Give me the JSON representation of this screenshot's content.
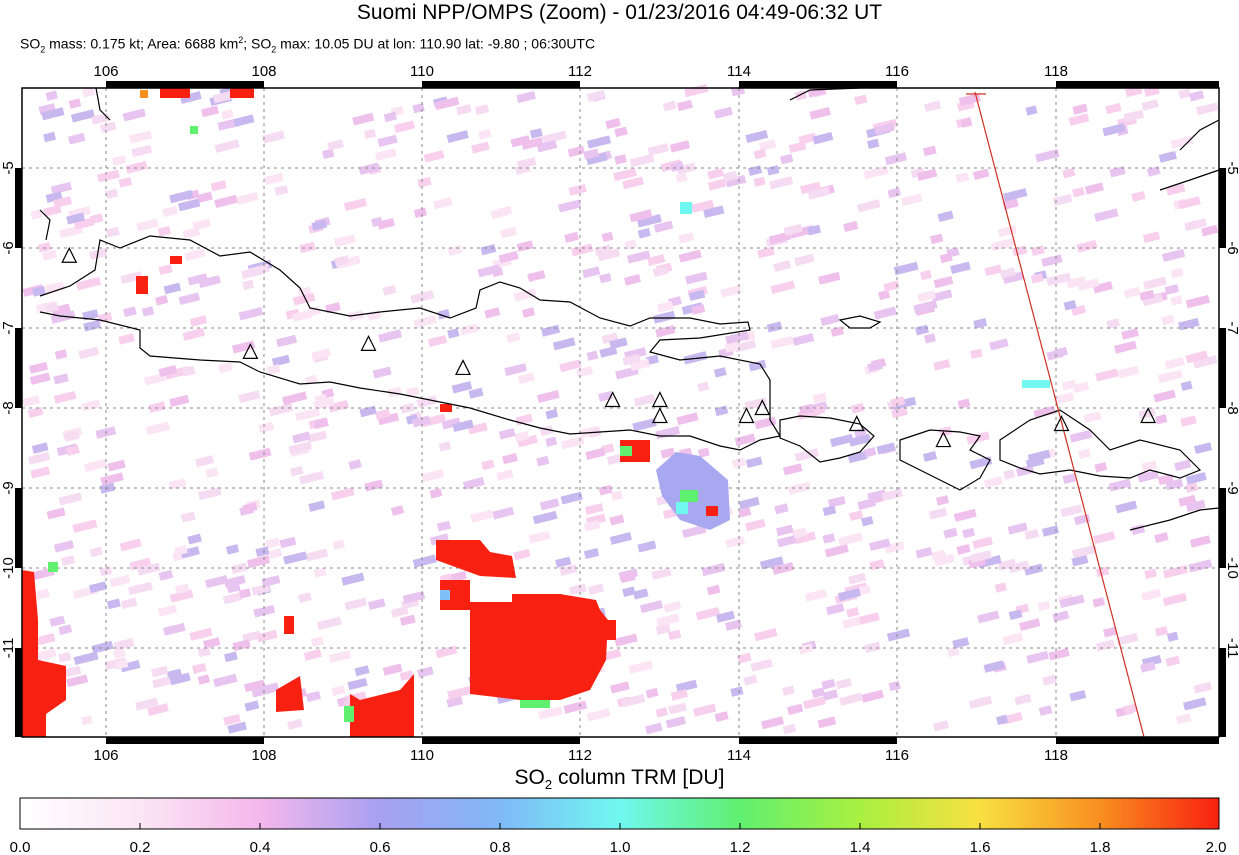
{
  "header": {
    "title": "Suomi NPP/OMPS (Zoom) - 01/23/2016 04:49-06:32 UT",
    "stats_part1": "SO",
    "stats_part1_sub": "2",
    "stats_part2": " mass: 0.175 kt; Area: 6688 km",
    "stats_part2_sup": "2",
    "stats_part3": "; SO",
    "stats_part3_sub": "2",
    "stats_part4": " max: 10.05 DU at lon: 110.90 lat: -9.80 ; 06:30UTC"
  },
  "map": {
    "lon_ticks": [
      "106",
      "108",
      "110",
      "112",
      "114",
      "116",
      "118"
    ],
    "lat_ticks": [
      "-5",
      "-6",
      "-7",
      "-8",
      "-9",
      "-10",
      "-11"
    ],
    "lon_range": [
      104.8,
      120.0
    ],
    "lat_range": [
      -12.1,
      -4.0
    ],
    "volcano_markers": [
      {
        "lon": 105.4,
        "lat": -6.1
      },
      {
        "lon": 107.7,
        "lat": -7.3
      },
      {
        "lon": 109.2,
        "lat": -7.2
      },
      {
        "lon": 110.4,
        "lat": -7.5
      },
      {
        "lon": 112.3,
        "lat": -7.9
      },
      {
        "lon": 112.9,
        "lat": -7.9
      },
      {
        "lon": 112.9,
        "lat": -8.1
      },
      {
        "lon": 114.0,
        "lat": -8.1
      },
      {
        "lon": 114.2,
        "lat": -8.0
      },
      {
        "lon": 115.4,
        "lat": -8.2
      },
      {
        "lon": 116.5,
        "lat": -8.4
      },
      {
        "lon": 118.0,
        "lat": -8.2
      },
      {
        "lon": 119.1,
        "lat": -8.1
      }
    ],
    "so2_high_patches": [
      {
        "lon": 111.2,
        "lat": -10.9,
        "value": 2.0
      },
      {
        "lon": 110.8,
        "lat": -10.0,
        "value": 2.0
      },
      {
        "lon": 109.6,
        "lat": -11.6,
        "value": 2.0
      },
      {
        "lon": 108.3,
        "lat": -11.3,
        "value": 2.0
      },
      {
        "lon": 105.1,
        "lat": -11.2,
        "value": 2.0
      },
      {
        "lon": 113.4,
        "lat": -9.0,
        "value": 1.3
      }
    ],
    "orbit_edge_color": "#d03020"
  },
  "colorbar": {
    "label_prefix": "SO",
    "label_sub": "2",
    "label_suffix": " column TRM [DU]",
    "ticks": [
      "0.0",
      "0.2",
      "0.4",
      "0.6",
      "0.8",
      "1.0",
      "1.2",
      "1.4",
      "1.6",
      "1.8",
      "2.0"
    ],
    "range": [
      0.0,
      2.0
    ],
    "colors": [
      "#ffffff",
      "#fbd0f0",
      "#e8a8f0",
      "#9f9ff0",
      "#80c0f8",
      "#70f8f0",
      "#60f070",
      "#a0f040",
      "#f8e040",
      "#f89020",
      "#f82010"
    ]
  }
}
